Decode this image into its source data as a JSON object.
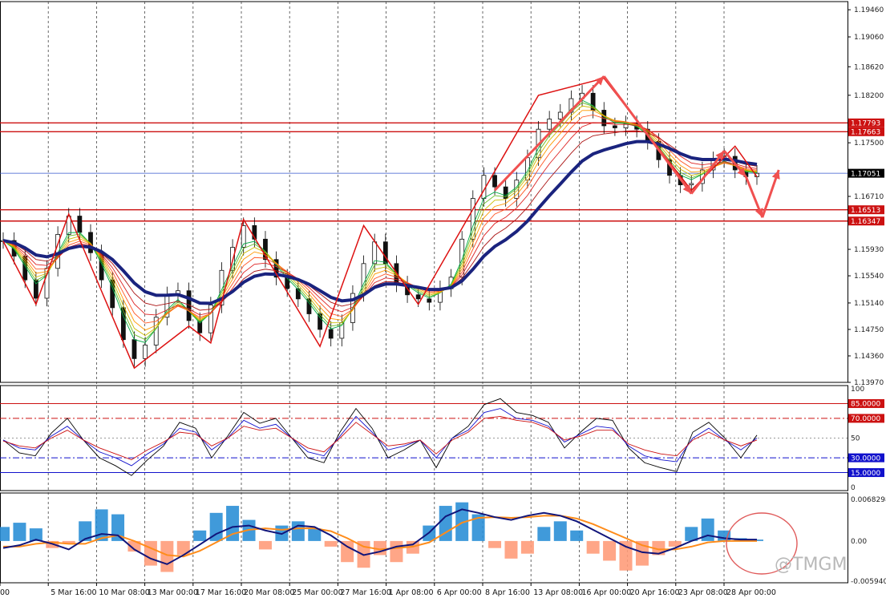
{
  "chart_data": {
    "type": "candlestick",
    "instrument_price_last": "1.17051",
    "x_ticks": [
      "00",
      "5 Mar 16:00",
      "10 Mar 08:00",
      "13 Mar 00:00",
      "17 Mar 16:00",
      "20 Mar 08:00",
      "25 Mar 00:00",
      "27 Mar 16:00",
      "1 Apr 08:00",
      "6 Apr 00:00",
      "8 Apr 16:00",
      "13 Apr 08:00",
      "16 Apr 00:00",
      "20 Apr 16:00",
      "23 Apr 08:00",
      "28 Apr 00:00"
    ],
    "price_ticks": [
      "1.19460",
      "1.19060",
      "1.18620",
      "1.18200",
      "1.17793",
      "1.17663",
      "1.17500",
      "1.17051",
      "1.16710",
      "1.16513",
      "1.16347",
      "1.15930",
      "1.15540",
      "1.15140",
      "1.14750",
      "1.14360",
      "1.13970"
    ],
    "price_ylim": [
      1.1397,
      1.1958
    ],
    "horizontal_levels": [
      {
        "label": "1.17793",
        "value": 1.17793,
        "color": "#cc1111",
        "tag_bg": "#cc1111",
        "tag_fg": "#ffffff"
      },
      {
        "label": "1.17663",
        "value": 1.17663,
        "color": "#cc1111",
        "tag_bg": "#cc1111",
        "tag_fg": "#ffffff"
      },
      {
        "label": "1.17051",
        "value": 1.17051,
        "color": "#3355cc",
        "tag_bg": "#000000",
        "tag_fg": "#ffffff"
      },
      {
        "label": "1.16513",
        "value": 1.16513,
        "color": "#cc1111",
        "tag_bg": "#cc1111",
        "tag_fg": "#ffffff"
      },
      {
        "label": "1.16347",
        "value": 1.16347,
        "color": "#cc1111",
        "tag_bg": "#cc1111",
        "tag_fg": "#ffffff"
      }
    ],
    "close_series": [
      1.1606,
      1.1583,
      1.1548,
      1.1521,
      1.1565,
      1.1615,
      1.1642,
      1.1618,
      1.1588,
      1.1548,
      1.1507,
      1.146,
      1.1432,
      1.1452,
      1.1493,
      1.1526,
      1.1532,
      1.1488,
      1.147,
      1.1511,
      1.1562,
      1.1596,
      1.1628,
      1.1608,
      1.1578,
      1.1552,
      1.1535,
      1.152,
      1.1498,
      1.1475,
      1.1462,
      1.1485,
      1.1528,
      1.1572,
      1.1604,
      1.1572,
      1.1542,
      1.1526,
      1.152,
      1.1515,
      1.1535,
      1.1552,
      1.1608,
      1.1668,
      1.1702,
      1.1685,
      1.1668,
      1.1695,
      1.1728,
      1.177,
      1.1785,
      1.1795,
      1.1815,
      1.1823,
      1.1798,
      1.1775,
      1.1772,
      1.1778,
      1.177,
      1.1752,
      1.1725,
      1.1702,
      1.1688,
      1.169,
      1.171,
      1.1725,
      1.173,
      1.171,
      1.17,
      1.1705
    ],
    "zigzag": [
      [
        0,
        1.1605
      ],
      [
        3,
        1.1512
      ],
      [
        6,
        1.1645
      ],
      [
        12,
        1.1418
      ],
      [
        17,
        1.148
      ],
      [
        19,
        1.1455
      ],
      [
        22,
        1.1637
      ],
      [
        29,
        1.145
      ],
      [
        33,
        1.1628
      ],
      [
        38,
        1.1512
      ],
      [
        49,
        1.182
      ],
      [
        55,
        1.1845
      ],
      [
        63,
        1.168
      ],
      [
        67,
        1.1745
      ],
      [
        69,
        1.17
      ]
    ],
    "projection_arrows": [
      [
        [
          45,
          1.168
        ],
        [
          55,
          1.1848
        ]
      ],
      [
        [
          55,
          1.1848
        ],
        [
          63,
          1.1675
        ]
      ],
      [
        [
          63,
          1.1675
        ],
        [
          66,
          1.1738
        ]
      ],
      [
        [
          66,
          1.1738
        ],
        [
          68,
          1.17
        ]
      ],
      [
        [
          68,
          1.17
        ],
        [
          69.5,
          1.164
        ]
      ],
      [
        [
          69.5,
          1.164
        ],
        [
          71,
          1.171
        ]
      ]
    ],
    "ma_thick_color": "#1a237e",
    "ribbon_colors": [
      "#00aa44",
      "#66bb22",
      "#ccbb00",
      "#ff9900",
      "#ff5522",
      "#dd2222",
      "#aa1111"
    ],
    "rsi": {
      "ylim": [
        0,
        100
      ],
      "y_ticks": [
        "100",
        "50",
        "0"
      ],
      "levels": [
        {
          "label": "85.0000",
          "value": 85,
          "color": "#cc1111",
          "style": "solid"
        },
        {
          "label": "70.0000",
          "value": 70,
          "color": "#cc1111",
          "style": "dashdot"
        },
        {
          "label": "30.0000",
          "value": 30,
          "color": "#1111cc",
          "style": "dashdot"
        },
        {
          "label": "15.0000",
          "value": 15,
          "color": "#1111cc",
          "style": "solid"
        }
      ],
      "series": [
        {
          "color": "#000000",
          "values": [
            48,
            35,
            32,
            55,
            70,
            48,
            30,
            22,
            12,
            28,
            42,
            66,
            60,
            30,
            52,
            76,
            65,
            70,
            50,
            30,
            25,
            56,
            80,
            60,
            30,
            38,
            48,
            20,
            50,
            62,
            84,
            90,
            76,
            73,
            66,
            40,
            56,
            70,
            68,
            40,
            25,
            20,
            16,
            56,
            66,
            50,
            30,
            53
          ]
        },
        {
          "color": "#1111cc",
          "values": [
            48,
            40,
            38,
            52,
            62,
            48,
            36,
            30,
            22,
            34,
            44,
            60,
            56,
            38,
            50,
            68,
            60,
            64,
            50,
            36,
            32,
            52,
            72,
            56,
            38,
            42,
            48,
            30,
            50,
            58,
            76,
            80,
            70,
            68,
            62,
            46,
            54,
            62,
            60,
            42,
            32,
            28,
            26,
            50,
            60,
            48,
            38,
            50
          ]
        },
        {
          "color": "#cc1111",
          "values": [
            47,
            42,
            40,
            50,
            58,
            48,
            40,
            34,
            28,
            38,
            46,
            56,
            54,
            42,
            50,
            62,
            58,
            60,
            50,
            40,
            36,
            50,
            66,
            54,
            42,
            44,
            48,
            34,
            48,
            56,
            70,
            72,
            68,
            66,
            60,
            48,
            52,
            58,
            58,
            44,
            38,
            34,
            32,
            48,
            56,
            48,
            42,
            48
          ]
        }
      ]
    },
    "macd": {
      "y_ticks": [
        "0.0068298",
        "0.00",
        "-0.0059406"
      ],
      "ylim": [
        -0.0059406,
        0.0068298
      ],
      "hist_pos_color": "#2b8fd6",
      "hist_neg_color": "#ff9c7a",
      "line1_color": "#11157a",
      "line2_color": "#ff8c1a",
      "histogram": [
        0.002,
        0.0026,
        0.0018,
        -0.001,
        -0.0004,
        0.0028,
        0.0045,
        0.0038,
        -0.0015,
        -0.0035,
        -0.0044,
        -0.002,
        0.0015,
        0.004,
        0.005,
        0.003,
        -0.0012,
        0.0022,
        0.0028,
        0.0018,
        -0.0008,
        -0.003,
        -0.0038,
        -0.002,
        -0.003,
        -0.0018,
        0.0022,
        0.005,
        0.0055,
        0.0038,
        -0.001,
        -0.0025,
        -0.0018,
        0.002,
        0.0028,
        0.0015,
        -0.0018,
        -0.0028,
        -0.0042,
        -0.0035,
        -0.002,
        -0.0008,
        0.002,
        0.0032,
        0.0015,
        0.0004,
        0.0002
      ],
      "line1": [
        -0.001,
        -0.0006,
        0.0002,
        -0.0004,
        -0.0012,
        0.0003,
        0.001,
        0.0008,
        -0.0012,
        -0.0025,
        -0.0033,
        -0.002,
        -0.0005,
        0.001,
        0.002,
        0.0022,
        0.0015,
        0.001,
        0.0022,
        0.002,
        0.0008,
        -0.0008,
        -0.002,
        -0.0015,
        -0.0008,
        -0.0005,
        0.0012,
        0.0035,
        0.0045,
        0.004,
        0.0034,
        0.003,
        0.0036,
        0.004,
        0.0036,
        0.0028,
        0.0016,
        0.0004,
        -0.0008,
        -0.0016,
        -0.0018,
        -0.001,
        0.0,
        0.0008,
        0.0004,
        0.0002,
        0.0002
      ],
      "line2": [
        -0.0008,
        -0.0008,
        -0.0004,
        -0.0002,
        -0.0004,
        -0.0004,
        0.0004,
        0.0008,
        0.0,
        -0.001,
        -0.002,
        -0.0022,
        -0.0014,
        -0.0002,
        0.001,
        0.0016,
        0.0018,
        0.0016,
        0.0018,
        0.0018,
        0.0014,
        0.0004,
        -0.0008,
        -0.0012,
        -0.001,
        -0.0008,
        -0.0002,
        0.0012,
        0.0026,
        0.0033,
        0.0034,
        0.0033,
        0.0034,
        0.0036,
        0.0036,
        0.0032,
        0.0024,
        0.0014,
        0.0004,
        -0.0006,
        -0.0012,
        -0.0012,
        -0.0008,
        -0.0002,
        0.0,
        0.0,
        0.0
      ]
    },
    "grid": true
  },
  "watermark": "@TMGM"
}
